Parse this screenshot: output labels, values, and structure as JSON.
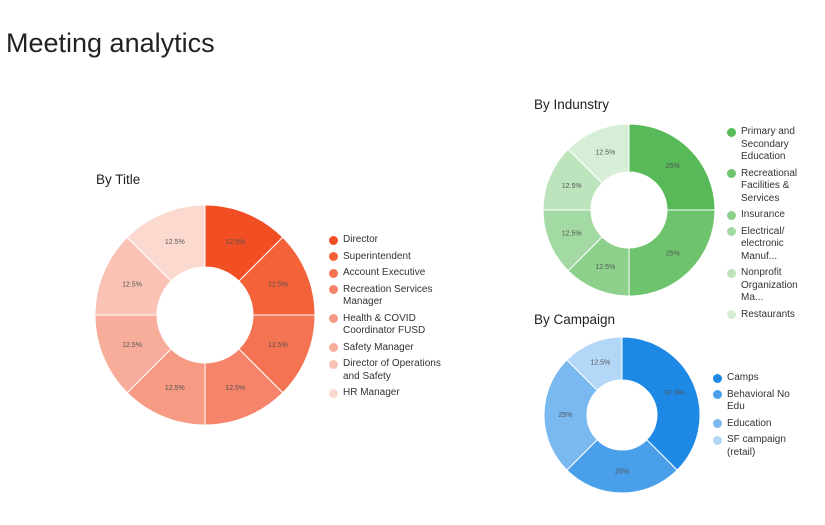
{
  "title": "Meeting analytics",
  "chart_data": [
    {
      "type": "pie",
      "donut": true,
      "title": "By Title",
      "categories": [
        "Director",
        "Superintendent",
        "Account Executive",
        "Recreation Services Manager",
        "Health & COVID Coordinator FUSD",
        "Safety Manager",
        "Director of Operations and Safety",
        "HR Manager"
      ],
      "values": [
        12.5,
        12.5,
        12.5,
        12.5,
        12.5,
        12.5,
        12.5,
        12.5
      ],
      "value_labels": [
        "12.5%",
        "12.5%",
        "12.5%",
        "12.5%",
        "12.5%",
        "12.5%",
        "12.5%",
        "12.5%"
      ],
      "colors": [
        "#f24e24",
        "#f4623a",
        "#f47352",
        "#f5846a",
        "#f69a83",
        "#f8ad9a",
        "#fac2b4",
        "#fcd9cf"
      ]
    },
    {
      "type": "pie",
      "donut": true,
      "title": "By Indunstry",
      "categories": [
        "Primary and Secondary Education",
        "Recreational Facilities & Services",
        "Insurance",
        "Electrical/ electronic Manuf...",
        "Nonprofit Organization Ma...",
        "Restaurants"
      ],
      "values": [
        25,
        25,
        12.5,
        12.5,
        12.5,
        12.5
      ],
      "value_labels": [
        "25%",
        "25%",
        "12.5%",
        "12.5%",
        "12.5%",
        "12.5%"
      ],
      "colors": [
        "#57b957",
        "#6dc46d",
        "#8cd08c",
        "#a3d9a3",
        "#bde4bd",
        "#d6eed6"
      ]
    },
    {
      "type": "pie",
      "donut": true,
      "title": "By Campaign",
      "categories": [
        "Camps",
        "Behavioral No Edu",
        "Education",
        "SF campaign (retail)"
      ],
      "values": [
        37.5,
        25,
        25,
        12.5
      ],
      "value_labels": [
        "37.5%",
        "25%",
        "25%",
        "12.5%"
      ],
      "colors": [
        "#1e88e5",
        "#4a9fea",
        "#7ab8f0",
        "#b3d7f7"
      ]
    }
  ]
}
